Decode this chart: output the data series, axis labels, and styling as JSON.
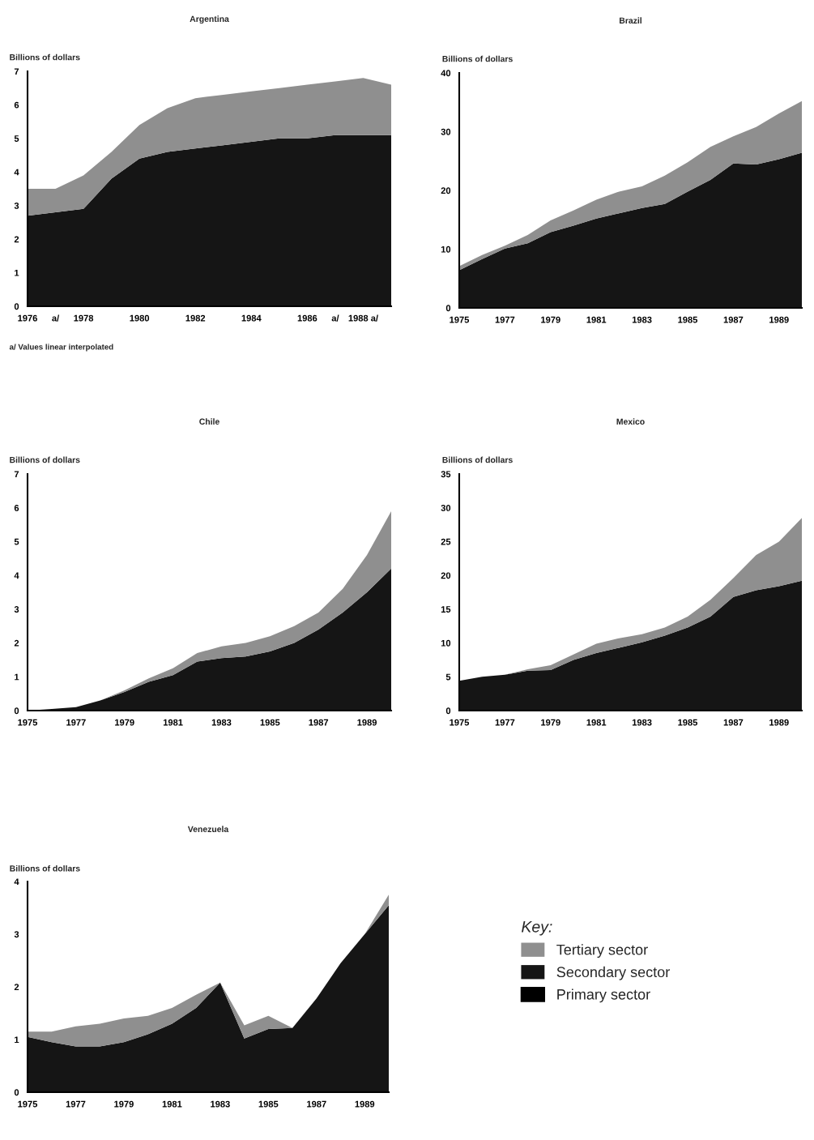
{
  "chart_data": [
    {
      "type": "area",
      "stacked": true,
      "title": "Argentina",
      "ylabel": "Billions of dollars",
      "annotations": [
        "a/ Values linear interpolated"
      ],
      "x": [
        1976,
        1977,
        1978,
        1979,
        1980,
        1981,
        1982,
        1983,
        1984,
        1985,
        1986,
        1987,
        1988,
        1989
      ],
      "xlim": [
        1976,
        1989
      ],
      "xticks": [
        1976,
        {
          "value": 1977,
          "label": "a/"
        },
        1978,
        1980,
        1982,
        1984,
        1986,
        {
          "value": 1987,
          "label": "a/"
        },
        {
          "value": 1988,
          "label": "1988 a/"
        }
      ],
      "ylim": [
        0,
        7
      ],
      "yticks": [
        0,
        1,
        2,
        3,
        4,
        5,
        6,
        7
      ],
      "series": [
        {
          "color": "#000000",
          "values": [
            null,
            null,
            null,
            null,
            null,
            null,
            null,
            null,
            null,
            null,
            null,
            null,
            null,
            null
          ]
        },
        {
          "color": "#151515",
          "values": [
            2.7,
            2.8,
            2.9,
            3.8,
            4.4,
            4.6,
            4.7,
            4.8,
            4.9,
            5.0,
            5.0,
            5.1,
            5.1,
            5.1
          ]
        },
        {
          "color": "#8f8f8f",
          "values": [
            0.8,
            0.7,
            1.0,
            0.8,
            1.0,
            1.3,
            1.5,
            1.5,
            1.5,
            1.5,
            1.6,
            1.6,
            1.7,
            1.5
          ]
        }
      ]
    },
    {
      "type": "area",
      "stacked": true,
      "title": "Brazil",
      "ylabel": "Billions of dollars",
      "x": [
        1975,
        1976,
        1977,
        1978,
        1979,
        1980,
        1981,
        1982,
        1983,
        1984,
        1985,
        1986,
        1987,
        1988,
        1989,
        1990
      ],
      "xlim": [
        1975,
        1990
      ],
      "xticks": [
        1975,
        1977,
        1979,
        1981,
        1983,
        1985,
        1987,
        1989
      ],
      "ylim": [
        0,
        40
      ],
      "yticks": [
        0,
        10,
        20,
        30,
        40
      ],
      "series": [
        {
          "color": "#000000",
          "values": [
            null,
            null,
            null,
            null,
            null,
            null,
            null,
            null,
            null,
            null,
            null,
            null,
            null,
            null,
            null,
            null
          ]
        },
        {
          "color": "#151515",
          "values": [
            6.4,
            8.3,
            10.1,
            11,
            12.9,
            14,
            15.2,
            16.1,
            17,
            17.7,
            19.8,
            21.8,
            24.6,
            24.4,
            25.3,
            26.4
          ]
        },
        {
          "color": "#8f8f8f",
          "values": [
            0.7,
            0.7,
            0.5,
            1.4,
            2.0,
            2.6,
            3.2,
            3.7,
            3.7,
            4.8,
            5.0,
            5.6,
            4.6,
            6.4,
            7.8,
            8.8
          ]
        }
      ]
    },
    {
      "type": "area",
      "stacked": true,
      "title": "Chile",
      "ylabel": "Billions of dollars",
      "x": [
        1975,
        1976,
        1977,
        1978,
        1979,
        1980,
        1981,
        1982,
        1983,
        1984,
        1985,
        1986,
        1987,
        1988,
        1989,
        1990
      ],
      "xlim": [
        1975,
        1990
      ],
      "xticks": [
        1975,
        1977,
        1979,
        1981,
        1983,
        1985,
        1987,
        1989
      ],
      "ylim": [
        0,
        7
      ],
      "yticks": [
        0,
        1,
        2,
        3,
        4,
        5,
        6,
        7
      ],
      "series": [
        {
          "color": "#000000",
          "values": [
            null,
            null,
            null,
            null,
            null,
            null,
            null,
            null,
            null,
            null,
            null,
            null,
            null,
            null,
            null,
            null
          ]
        },
        {
          "color": "#151515",
          "values": [
            0,
            0.05,
            0.1,
            0.3,
            0.55,
            0.85,
            1.05,
            1.45,
            1.55,
            1.6,
            1.75,
            2.0,
            2.4,
            2.9,
            3.5,
            4.2
          ]
        },
        {
          "color": "#8f8f8f",
          "values": [
            0,
            0,
            0,
            0,
            0.05,
            0.1,
            0.2,
            0.25,
            0.35,
            0.4,
            0.45,
            0.5,
            0.5,
            0.7,
            1.1,
            1.7
          ]
        }
      ]
    },
    {
      "type": "area",
      "stacked": true,
      "title": "Mexico",
      "ylabel": "Billions of dollars",
      "x": [
        1975,
        1976,
        1977,
        1978,
        1979,
        1980,
        1981,
        1982,
        1983,
        1984,
        1985,
        1986,
        1987,
        1988,
        1989,
        1990
      ],
      "xlim": [
        1975,
        1990
      ],
      "xticks": [
        1975,
        1977,
        1979,
        1981,
        1983,
        1985,
        1987,
        1989
      ],
      "ylim": [
        0,
        35
      ],
      "yticks": [
        0,
        5,
        10,
        15,
        20,
        25,
        30,
        35
      ],
      "series": [
        {
          "color": "#000000",
          "values": [
            null,
            null,
            null,
            null,
            null,
            null,
            null,
            null,
            null,
            null,
            null,
            null,
            null,
            null,
            null,
            null
          ]
        },
        {
          "color": "#151515",
          "values": [
            4.4,
            5.0,
            5.3,
            5.9,
            6.0,
            7.5,
            8.5,
            9.3,
            10.1,
            11.1,
            12.3,
            13.9,
            16.8,
            17.8,
            18.4,
            19.2
          ]
        },
        {
          "color": "#8f8f8f",
          "values": [
            0,
            0,
            0,
            0.2,
            0.7,
            0.8,
            1.4,
            1.4,
            1.2,
            1.2,
            1.6,
            2.5,
            2.8,
            5.2,
            6.6,
            9.3
          ]
        }
      ]
    },
    {
      "type": "area",
      "stacked": true,
      "title": "Venezuela",
      "ylabel": "Billions of dollars",
      "legend": "right",
      "legend_title": "Key:",
      "x": [
        1975,
        1976,
        1977,
        1978,
        1979,
        1980,
        1981,
        1982,
        1983,
        1984,
        1985,
        1986,
        1987,
        1988,
        1989,
        1990
      ],
      "xlim": [
        1975,
        1990
      ],
      "xticks": [
        1975,
        1977,
        1979,
        1981,
        1983,
        1985,
        1987,
        1989
      ],
      "ylim": [
        0,
        4
      ],
      "yticks": [
        0,
        1,
        2,
        3,
        4
      ],
      "series": [
        {
          "name": "Primary sector",
          "color": "#000000",
          "values": [
            null,
            null,
            null,
            null,
            null,
            null,
            null,
            null,
            null,
            null,
            null,
            null,
            null,
            null,
            null,
            null
          ]
        },
        {
          "name": "Secondary sector",
          "color": "#151515",
          "values": [
            1.05,
            0.95,
            0.87,
            0.87,
            0.95,
            1.1,
            1.3,
            1.6,
            2.08,
            1.02,
            1.2,
            1.22,
            1.78,
            2.45,
            3.0,
            3.55
          ]
        },
        {
          "name": "Tertiary sector",
          "color": "#8f8f8f",
          "values": [
            0.1,
            0.2,
            0.38,
            0.43,
            0.45,
            0.35,
            0.3,
            0.25,
            0,
            0.25,
            0.25,
            0,
            0,
            0,
            0,
            0.2
          ]
        }
      ]
    }
  ]
}
